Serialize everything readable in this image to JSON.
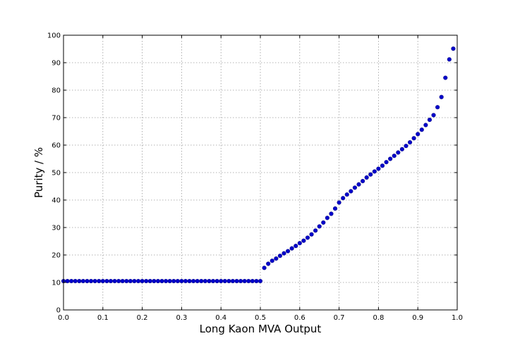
{
  "chart_data": {
    "type": "scatter",
    "xlabel": "Long Kaon MVA Output",
    "ylabel": "Purity / %",
    "xlim": [
      0.0,
      1.0
    ],
    "ylim": [
      0,
      100
    ],
    "xticks": [
      "0.0",
      "0.1",
      "0.2",
      "0.3",
      "0.4",
      "0.5",
      "0.6",
      "0.7",
      "0.8",
      "0.9",
      "1.0"
    ],
    "yticks": [
      "0",
      "10",
      "20",
      "30",
      "40",
      "50",
      "60",
      "70",
      "80",
      "90",
      "100"
    ],
    "grid": true,
    "marker_color": "#0000cc",
    "series": [
      {
        "x": [
          0.0,
          0.01,
          0.02,
          0.03,
          0.04,
          0.05,
          0.06,
          0.07,
          0.08,
          0.09,
          0.1,
          0.11,
          0.12,
          0.13,
          0.14,
          0.15,
          0.16,
          0.17,
          0.18,
          0.19,
          0.2,
          0.21,
          0.22,
          0.23,
          0.24,
          0.25,
          0.26,
          0.27,
          0.28,
          0.29,
          0.3,
          0.31,
          0.32,
          0.33,
          0.34,
          0.35,
          0.36,
          0.37,
          0.38,
          0.39,
          0.4,
          0.41,
          0.42,
          0.43,
          0.44,
          0.45,
          0.46,
          0.47,
          0.48,
          0.49,
          0.5,
          0.51,
          0.52,
          0.53,
          0.54,
          0.55,
          0.56,
          0.57,
          0.58,
          0.59,
          0.6,
          0.61,
          0.62,
          0.63,
          0.64,
          0.65,
          0.66,
          0.67,
          0.68,
          0.69,
          0.7,
          0.71,
          0.72,
          0.73,
          0.74,
          0.75,
          0.76,
          0.77,
          0.78,
          0.79,
          0.8,
          0.81,
          0.82,
          0.83,
          0.84,
          0.85,
          0.86,
          0.87,
          0.88,
          0.89,
          0.9,
          0.91,
          0.92,
          0.93,
          0.94,
          0.95,
          0.96,
          0.97,
          0.98,
          0.99
        ],
        "y": [
          10.5,
          10.5,
          10.5,
          10.5,
          10.5,
          10.5,
          10.5,
          10.5,
          10.5,
          10.5,
          10.5,
          10.5,
          10.5,
          10.5,
          10.5,
          10.5,
          10.5,
          10.5,
          10.5,
          10.5,
          10.5,
          10.5,
          10.5,
          10.5,
          10.5,
          10.5,
          10.5,
          10.5,
          10.5,
          10.5,
          10.5,
          10.5,
          10.5,
          10.5,
          10.5,
          10.5,
          10.5,
          10.5,
          10.5,
          10.5,
          10.5,
          10.5,
          10.5,
          10.5,
          10.5,
          10.5,
          10.5,
          10.5,
          10.5,
          10.5,
          10.5,
          15.3,
          16.8,
          17.9,
          18.7,
          19.7,
          20.6,
          21.4,
          22.4,
          23.3,
          24.3,
          25.2,
          26.3,
          27.5,
          28.9,
          30.4,
          31.8,
          33.5,
          35.0,
          36.9,
          39.1,
          40.7,
          42.0,
          43.2,
          44.5,
          45.7,
          46.9,
          48.2,
          49.3,
          50.4,
          51.4,
          52.5,
          53.8,
          55.0,
          56.1,
          57.3,
          58.5,
          59.7,
          61.0,
          62.5,
          64.0,
          65.6,
          67.3,
          69.2,
          70.9,
          73.8,
          77.5,
          84.5,
          91.2,
          95.1
        ]
      }
    ]
  }
}
